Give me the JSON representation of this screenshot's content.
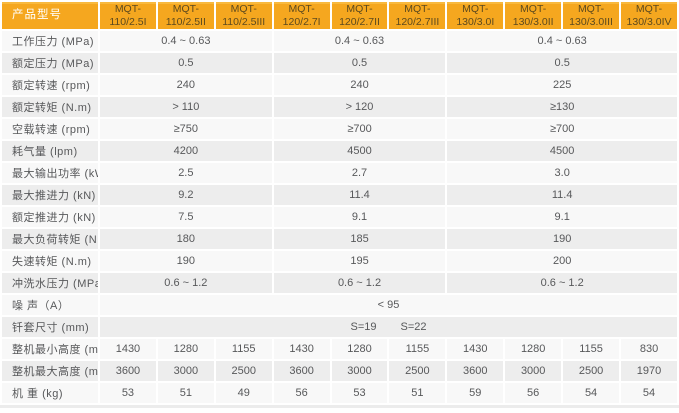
{
  "table": {
    "corner_label": "产品型号",
    "columns": [
      {
        "prefix": "MQT-",
        "code": "110/2.5I"
      },
      {
        "prefix": "MQT-",
        "code": "110/2.5II"
      },
      {
        "prefix": "MQT-",
        "code": "110/2.5III"
      },
      {
        "prefix": "MQT-",
        "code": "120/2.7I"
      },
      {
        "prefix": "MQT-",
        "code": "120/2.7II"
      },
      {
        "prefix": "MQT-",
        "code": "120/2.7III"
      },
      {
        "prefix": "MQT-",
        "code": "130/3.0I"
      },
      {
        "prefix": "MQT-",
        "code": "130/3.0II"
      },
      {
        "prefix": "MQT-",
        "code": "130/3.0III"
      },
      {
        "prefix": "MQT-",
        "code": "130/3.0IV"
      }
    ],
    "group_spans": [
      3,
      3,
      4
    ],
    "rows": [
      {
        "type": "group",
        "label": "工作压力 (MPa)",
        "values": [
          "0.4 ~ 0.63",
          "0.4 ~ 0.63",
          "0.4 ~ 0.63"
        ]
      },
      {
        "type": "group",
        "label": "额定压力 (MPa)",
        "values": [
          "0.5",
          "0.5",
          "0.5"
        ]
      },
      {
        "type": "group",
        "label": "额定转速 (rpm)",
        "values": [
          "240",
          "240",
          "225"
        ]
      },
      {
        "type": "group",
        "label": "额定转矩 (N.m)",
        "values": [
          "> 110",
          "> 120",
          "≥130"
        ]
      },
      {
        "type": "group",
        "label": "空载转速 (rpm)",
        "values": [
          "≥750",
          "≥700",
          "≥700"
        ]
      },
      {
        "type": "group",
        "label": "耗气量 (lpm)",
        "values": [
          "4200",
          "4500",
          "4500"
        ]
      },
      {
        "type": "group",
        "label": "最大输出功率 (kW)",
        "values": [
          "2.5",
          "2.7",
          "3.0"
        ]
      },
      {
        "type": "group",
        "label": "最大推进力 (kN)",
        "values": [
          "9.2",
          "11.4",
          "11.4"
        ]
      },
      {
        "type": "group",
        "label": "额定推进力 (kN)",
        "values": [
          "7.5",
          "9.1",
          "9.1"
        ]
      },
      {
        "type": "group",
        "label": "最大负荷转矩  (N.m)",
        "values": [
          "180",
          "185",
          "190"
        ]
      },
      {
        "type": "group",
        "label": "失速转矩 (N.m)",
        "values": [
          "190",
          "195",
          "200"
        ]
      },
      {
        "type": "group",
        "label": "冲洗水压力 (MPa)",
        "values": [
          "0.6 ~ 1.2",
          "0.6 ~ 1.2",
          "0.6 ~ 1.2"
        ]
      },
      {
        "type": "span",
        "label": "噪 声（A）",
        "values": [
          "< 95"
        ]
      },
      {
        "type": "span2",
        "label": "钎套尺寸 (mm)",
        "values": [
          "S=19",
          "S=22"
        ]
      },
      {
        "type": "cols",
        "label": "整机最小高度 (mm)",
        "values": [
          "1430",
          "1280",
          "1155",
          "1430",
          "1280",
          "1155",
          "1430",
          "1280",
          "1155",
          "830"
        ]
      },
      {
        "type": "cols",
        "label": "整机最大高度 (mm)",
        "values": [
          "3600",
          "3000",
          "2500",
          "3600",
          "3000",
          "2500",
          "3600",
          "3000",
          "2500",
          "1970"
        ]
      },
      {
        "type": "cols",
        "label": "机 重 (kg)",
        "values": [
          "53",
          "51",
          "49",
          "56",
          "53",
          "51",
          "59",
          "56",
          "54",
          "54"
        ]
      }
    ],
    "colors": {
      "header_bg": "#F5A71F",
      "header_text": "#5D4A1F",
      "corner_text": "#FFFFFF",
      "row_light": "#F8F8F8",
      "row_dark": "#EDEDED",
      "body_text": "#57585A"
    }
  }
}
